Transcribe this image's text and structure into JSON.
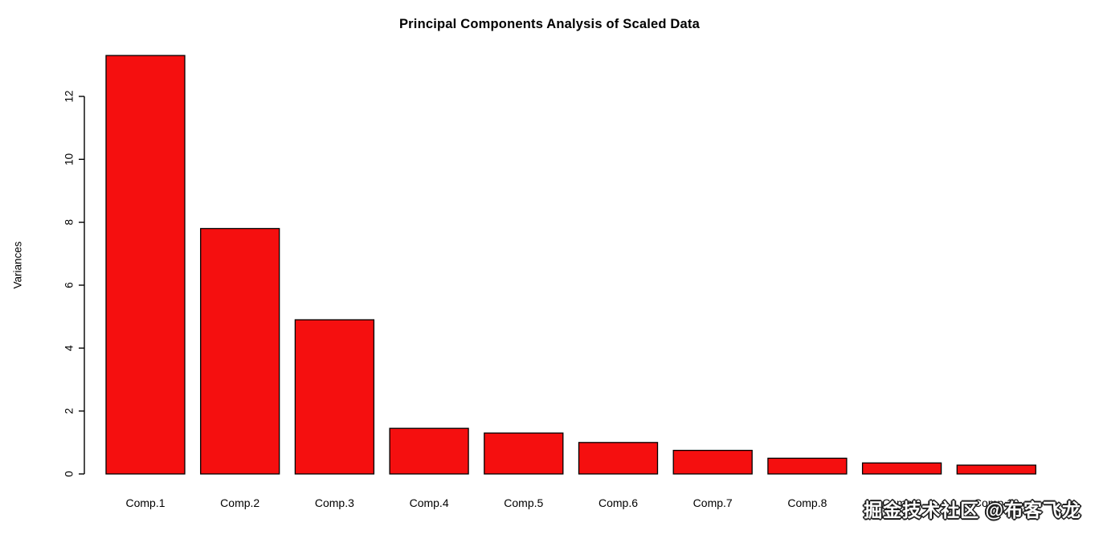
{
  "chart_data": {
    "type": "bar",
    "title": "Principal Components Analysis of Scaled Data",
    "categories": [
      "Comp.1",
      "Comp.2",
      "Comp.3",
      "Comp.4",
      "Comp.5",
      "Comp.6",
      "Comp.7",
      "Comp.8",
      "Comp.9",
      "Comp.10"
    ],
    "values": [
      13.3,
      7.8,
      4.9,
      1.45,
      1.3,
      1.0,
      0.75,
      0.5,
      0.35,
      0.28
    ],
    "xlabel": "",
    "ylabel": "Variances",
    "ylim": [
      0,
      13.4
    ],
    "yticks": [
      0,
      2,
      4,
      6,
      8,
      10,
      12
    ],
    "grid": false,
    "legend_position": "none",
    "bar_fill_color": "#f50f0f",
    "bar_border_color": "#000000",
    "axis_color": "#000000",
    "background_color": "#ffffff"
  },
  "watermark": {
    "text": "掘金技术社区 @布客飞龙"
  }
}
